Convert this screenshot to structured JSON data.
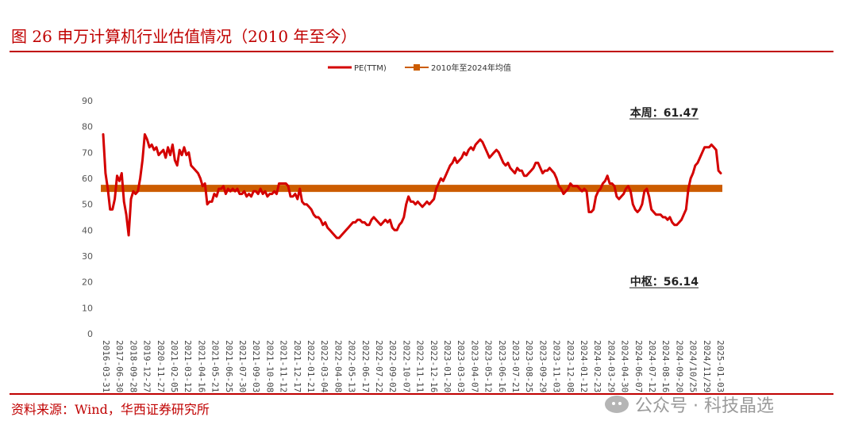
{
  "page": {
    "title": "图 26  申万计算机行业估值情况（2010 年至今）",
    "source": "资料来源：Wind，华西证券研究所",
    "watermark": "公众号 · 科技晶选"
  },
  "colors": {
    "accent": "#c00000",
    "pe_line": "#d40000",
    "mean_line": "#cc5c00"
  },
  "chart_data": {
    "type": "line",
    "title": "",
    "xlabel": "",
    "ylabel": "",
    "ylim": [
      0,
      90
    ],
    "yticks": [
      0,
      10,
      20,
      30,
      40,
      50,
      60,
      70,
      80,
      90
    ],
    "grid": false,
    "legend_position": "top-center",
    "x_tick_labels": [
      "2016-03-31",
      "2017-06-30",
      "2018-09-28",
      "2019-12-27",
      "2020-11-27",
      "2021-02-05",
      "2021-03-12",
      "2021-04-16",
      "2021-05-21",
      "2021-06-25",
      "2021-07-30",
      "2021-09-03",
      "2021-10-08",
      "2021-11-12",
      "2021-12-17",
      "2022-01-21",
      "2022-03-04",
      "2022-04-08",
      "2022-05-13",
      "2022-06-17",
      "2022-07-22",
      "2022-09-02",
      "2022-10-07",
      "2022-11-11",
      "2022-12-16",
      "2023-01-20",
      "2023-03-03",
      "2023-04-07",
      "2023-05-12",
      "2023-06-16",
      "2023-07-21",
      "2023-08-25",
      "2023-09-29",
      "2023-11-03",
      "2023-12-08",
      "2024-01-12",
      "2024-02-23",
      "2024-03-29",
      "2024-04-30",
      "2024-06-07",
      "2024-07-12",
      "2024-08-16",
      "2024-09-20",
      "2024/10/25",
      "2024/11/29",
      "2025-01-03"
    ],
    "series": [
      {
        "name": "PE(TTM)",
        "values": [
          77,
          62,
          56,
          48,
          48,
          52,
          61,
          59,
          62,
          51,
          46,
          38,
          52,
          55,
          54,
          55,
          60,
          67,
          77,
          75,
          72,
          73,
          71,
          72,
          69,
          70,
          71,
          68,
          72,
          69,
          73,
          67,
          65,
          71,
          69,
          72,
          69,
          70,
          65,
          64,
          63,
          62,
          60,
          57,
          58,
          50,
          51,
          51,
          54,
          53,
          56,
          56,
          57,
          54,
          56,
          55,
          56,
          55,
          56,
          54,
          54,
          55,
          53,
          54,
          53,
          55,
          55,
          54,
          56,
          54,
          55,
          53,
          54,
          54,
          55,
          54,
          58,
          58,
          58,
          58,
          57,
          53,
          53,
          54,
          52,
          56,
          51,
          50,
          50,
          49,
          48,
          46,
          45,
          45,
          44,
          42,
          43,
          41,
          40,
          39,
          38,
          37,
          37,
          38,
          39,
          40,
          41,
          42,
          43,
          43,
          44,
          44,
          43,
          43,
          42,
          42,
          44,
          45,
          44,
          43,
          42,
          43,
          44,
          43,
          44,
          41,
          40,
          40,
          42,
          43,
          45,
          50,
          53,
          51,
          51,
          50,
          51,
          50,
          49,
          50,
          51,
          50,
          51,
          52,
          56,
          58,
          60,
          59,
          61,
          63,
          65,
          66,
          68,
          66,
          67,
          68,
          70,
          69,
          71,
          72,
          71,
          73,
          74,
          75,
          74,
          72,
          70,
          68,
          69,
          70,
          71,
          70,
          68,
          66,
          65,
          66,
          64,
          63,
          62,
          64,
          63,
          63,
          61,
          61,
          62,
          63,
          64,
          66,
          66,
          64,
          62,
          63,
          63,
          64,
          63,
          62,
          60,
          57,
          56,
          54,
          55,
          56,
          58,
          57,
          57,
          57,
          56,
          55,
          56,
          55,
          47,
          47,
          48,
          53,
          55,
          56,
          58,
          59,
          61,
          58,
          58,
          57,
          53,
          52,
          53,
          54,
          56,
          57,
          55,
          50,
          48,
          47,
          48,
          50,
          55,
          56,
          53,
          48,
          47,
          46,
          46,
          46,
          45,
          45,
          44,
          45,
          43,
          42,
          42,
          43,
          44,
          46,
          48,
          56,
          60,
          62,
          65,
          66,
          68,
          70,
          72,
          72,
          72,
          73,
          72,
          71,
          63,
          62
        ],
        "color": "#d40000"
      },
      {
        "name": "2010年至2024年均值",
        "values": [
          56.14
        ],
        "color": "#cc5c00"
      }
    ],
    "annotations": [
      {
        "text": "本周：61.47",
        "value": 61.47
      },
      {
        "text": "中枢：56.14",
        "value": 56.14
      }
    ]
  }
}
